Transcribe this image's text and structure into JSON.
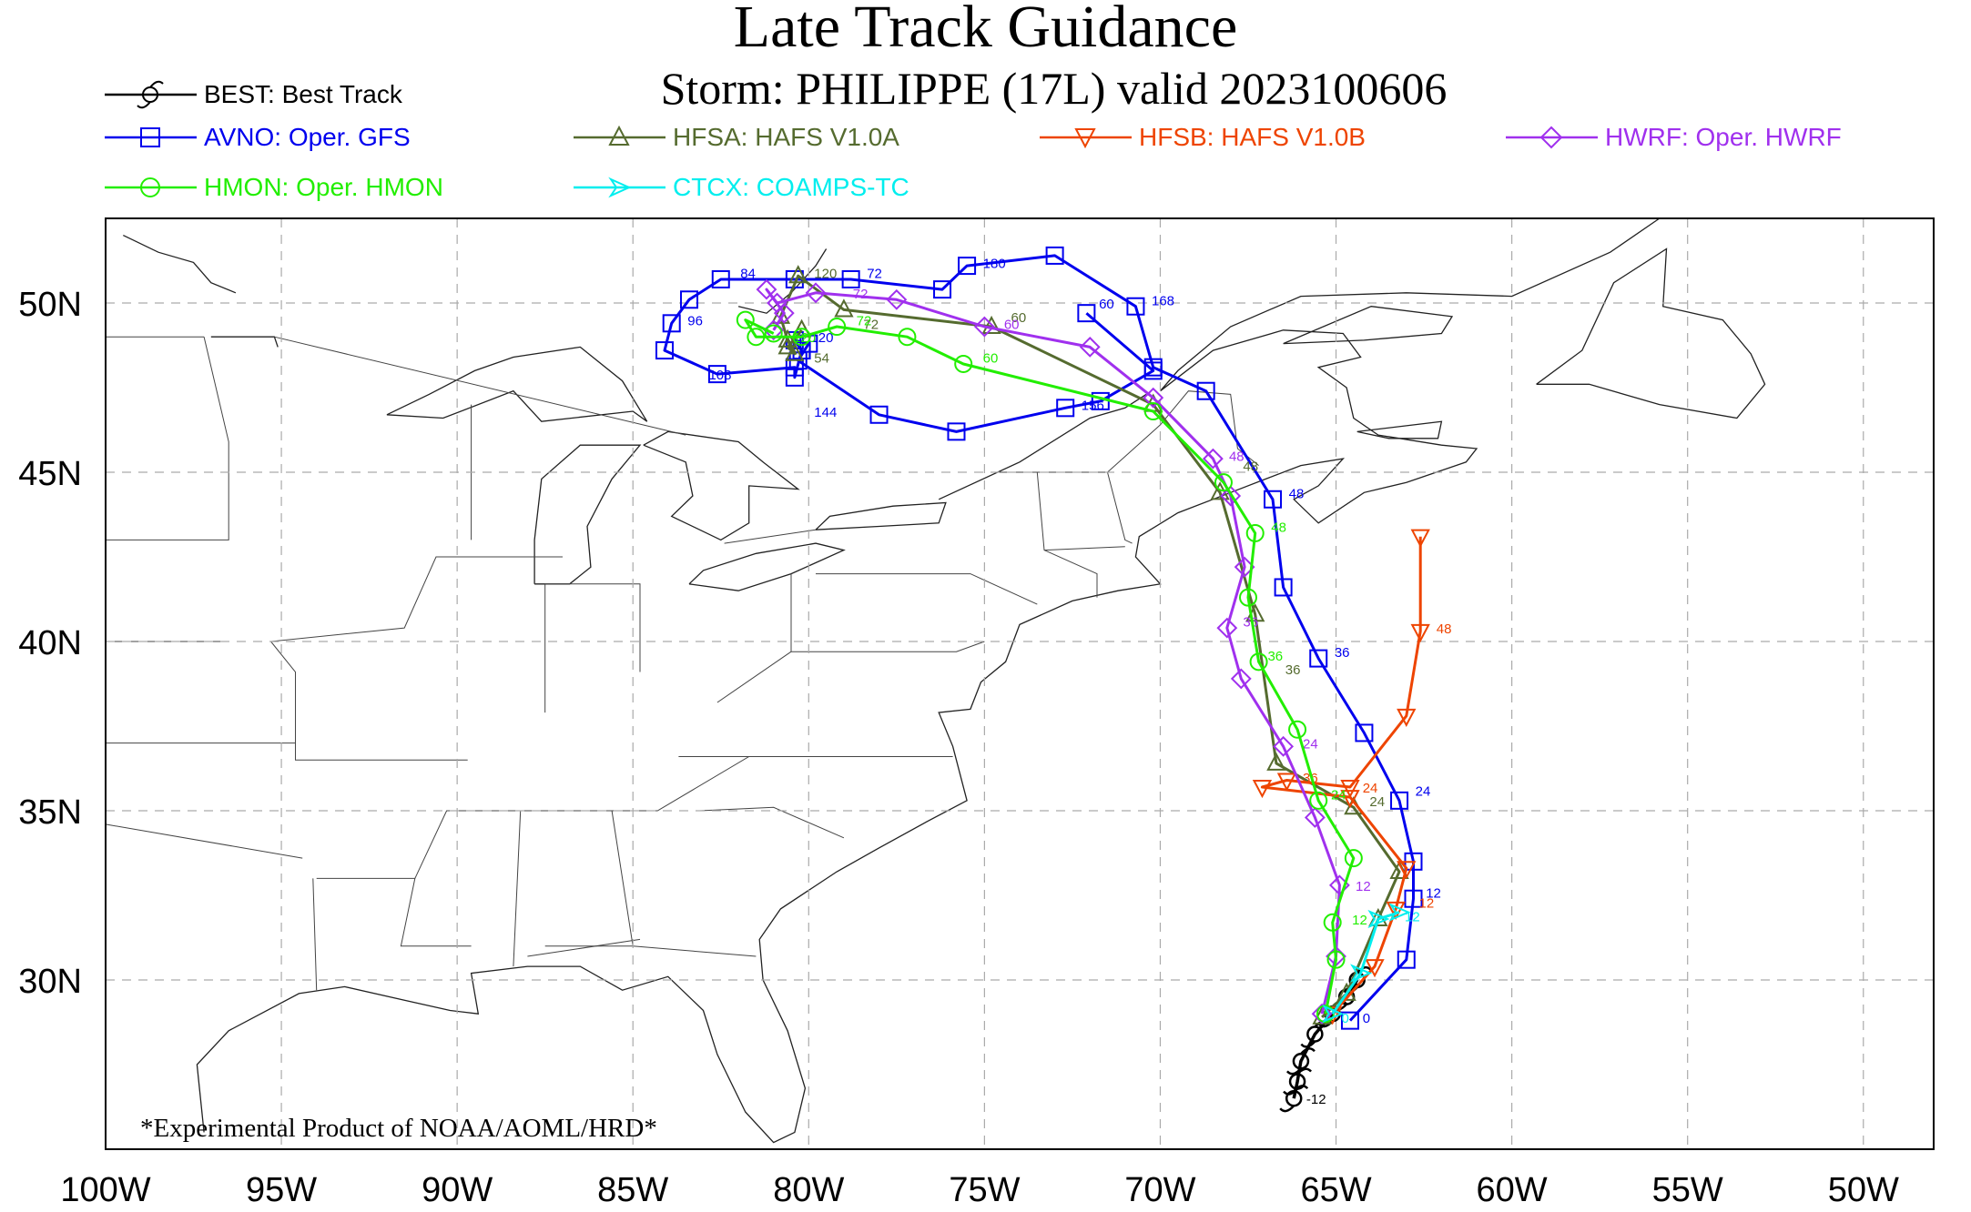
{
  "title": "Late Track Guidance",
  "subtitle": "Storm: PHILIPPE (17L) valid 2023100606",
  "footnote": "*Experimental Product of NOAA/AOML/HRD*",
  "axes": {
    "lon_labels": [
      "100W",
      "95W",
      "90W",
      "85W",
      "80W",
      "75W",
      "70W",
      "65W",
      "60W",
      "55W",
      "50W"
    ],
    "lat_labels": [
      "30N",
      "35N",
      "40N",
      "45N",
      "50N"
    ],
    "lon_range": [
      -100,
      -48
    ],
    "lat_range": [
      25,
      52.5
    ],
    "grid": true
  },
  "legend": [
    {
      "key": "BEST",
      "label": "BEST: Best Track",
      "color": "#000000",
      "marker": "hurricane"
    },
    {
      "key": "AVNO",
      "label": "AVNO: Oper. GFS",
      "color": "#0000ee",
      "marker": "square"
    },
    {
      "key": "HFSA",
      "label": "HFSA: HAFS V1.0A",
      "color": "#556b2f",
      "marker": "triangle-up"
    },
    {
      "key": "HFSB",
      "label": "HFSB: HAFS V1.0B",
      "color": "#ee4400",
      "marker": "triangle-down"
    },
    {
      "key": "HWRF",
      "label": "HWRF: Oper. HWRF",
      "color": "#a030ee",
      "marker": "diamond"
    },
    {
      "key": "HMON",
      "label": "HMON: Oper. HMON",
      "color": "#22ee00",
      "marker": "circle"
    },
    {
      "key": "CTCX",
      "label": "CTCX: COAMPS-TC",
      "color": "#00eeee",
      "marker": "arrow"
    }
  ],
  "chart_data": {
    "type": "scatter",
    "series": [
      {
        "name": "BEST",
        "color": "#000000",
        "marker": "hurricane",
        "points": [
          [
            -66.2,
            26.5
          ],
          [
            -66.1,
            27.0
          ],
          [
            -66.0,
            27.6
          ],
          [
            -65.6,
            28.4
          ],
          [
            -65.1,
            29.0
          ],
          [
            -64.7,
            29.5
          ],
          [
            -64.4,
            30.0
          ]
        ],
        "labels": [
          {
            "text": "-12",
            "lon": -66.0,
            "lat": 26.5
          }
        ]
      },
      {
        "name": "AVNO",
        "color": "#0000ee",
        "marker": "square",
        "points": [
          [
            -64.6,
            28.8
          ],
          [
            -63.0,
            30.6
          ],
          [
            -62.8,
            32.4
          ],
          [
            -62.8,
            33.5
          ],
          [
            -63.2,
            35.3
          ],
          [
            -64.2,
            37.3
          ],
          [
            -65.5,
            39.5
          ],
          [
            -66.5,
            41.6
          ],
          [
            -66.8,
            44.2
          ],
          [
            -68.7,
            47.4
          ],
          [
            -70.2,
            48.1
          ],
          [
            -70.7,
            49.9
          ],
          [
            -73.0,
            51.4
          ],
          [
            -75.5,
            51.1
          ],
          [
            -76.2,
            50.4
          ],
          [
            -78.8,
            50.7
          ],
          [
            -80.4,
            50.7
          ],
          [
            -82.5,
            50.7
          ],
          [
            -83.4,
            50.1
          ],
          [
            -83.9,
            49.4
          ],
          [
            -84.1,
            48.6
          ],
          [
            -82.6,
            47.9
          ],
          [
            -80.4,
            48.1
          ],
          [
            -80.4,
            47.8
          ],
          [
            -80.2,
            48.6
          ],
          [
            -80.4,
            48.9
          ],
          [
            -80.0,
            48.8
          ],
          [
            -80.3,
            48.3
          ],
          [
            -78.0,
            46.7
          ],
          [
            -75.8,
            46.2
          ],
          [
            -72.7,
            46.9
          ],
          [
            -71.7,
            47.1
          ],
          [
            -70.2,
            48.0
          ],
          [
            -72.1,
            49.7
          ]
        ],
        "labels": [
          {
            "text": "0",
            "lon": -64.4,
            "lat": 28.9
          },
          {
            "text": "12",
            "lon": -62.6,
            "lat": 32.6
          },
          {
            "text": "24",
            "lon": -62.9,
            "lat": 35.6
          },
          {
            "text": "36",
            "lon": -65.2,
            "lat": 39.7
          },
          {
            "text": "48",
            "lon": -66.5,
            "lat": 44.4
          },
          {
            "text": "60",
            "lon": -71.9,
            "lat": 50.0
          },
          {
            "text": "72",
            "lon": -78.5,
            "lat": 50.9
          },
          {
            "text": "84",
            "lon": -82.1,
            "lat": 50.9
          },
          {
            "text": "96",
            "lon": -83.6,
            "lat": 49.5
          },
          {
            "text": "108",
            "lon": -83.0,
            "lat": 47.9
          },
          {
            "text": "120",
            "lon": -80.1,
            "lat": 49.0
          },
          {
            "text": "144",
            "lon": -80.0,
            "lat": 46.8
          },
          {
            "text": "156",
            "lon": -72.4,
            "lat": 47.0
          },
          {
            "text": "168",
            "lon": -70.4,
            "lat": 50.1
          },
          {
            "text": "180",
            "lon": -75.2,
            "lat": 51.2
          }
        ]
      },
      {
        "name": "HFSA",
        "color": "#556b2f",
        "marker": "triangle-up",
        "points": [
          [
            -65.4,
            28.9
          ],
          [
            -64.7,
            29.6
          ],
          [
            -63.8,
            31.8
          ],
          [
            -63.2,
            33.2
          ],
          [
            -64.5,
            35.1
          ],
          [
            -66.7,
            36.4
          ],
          [
            -67.3,
            40.8
          ],
          [
            -68.3,
            44.4
          ],
          [
            -70.2,
            47.0
          ],
          [
            -74.8,
            49.3
          ],
          [
            -79.0,
            49.8
          ],
          [
            -80.3,
            50.8
          ],
          [
            -80.8,
            49.6
          ],
          [
            -80.6,
            48.9
          ],
          [
            -80.4,
            48.5
          ],
          [
            -80.6,
            48.7
          ],
          [
            -80.2,
            49.2
          ]
        ],
        "labels": [
          {
            "text": "24",
            "lon": -64.2,
            "lat": 35.3
          },
          {
            "text": "36",
            "lon": -66.6,
            "lat": 39.2
          },
          {
            "text": "48",
            "lon": -67.8,
            "lat": 45.2
          },
          {
            "text": "60",
            "lon": -74.4,
            "lat": 49.6
          },
          {
            "text": "72",
            "lon": -78.6,
            "lat": 49.4
          },
          {
            "text": "120",
            "lon": -80.0,
            "lat": 50.9
          },
          {
            "text": "54",
            "lon": -80.0,
            "lat": 48.4
          }
        ]
      },
      {
        "name": "HFSB",
        "color": "#ee4400",
        "marker": "triangle-down",
        "points": [
          [
            -65.1,
            29.0
          ],
          [
            -63.9,
            30.4
          ],
          [
            -63.3,
            32.1
          ],
          [
            -63.0,
            33.3
          ],
          [
            -64.6,
            35.4
          ],
          [
            -67.1,
            35.7
          ],
          [
            -66.4,
            35.9
          ],
          [
            -64.6,
            35.7
          ],
          [
            -63.0,
            37.8
          ],
          [
            -62.6,
            40.3
          ],
          [
            -62.6,
            43.1
          ]
        ],
        "labels": [
          {
            "text": "24",
            "lon": -64.4,
            "lat": 35.7
          },
          {
            "text": "36",
            "lon": -66.1,
            "lat": 36.0
          },
          {
            "text": "48",
            "lon": -62.3,
            "lat": 40.4
          },
          {
            "text": "12",
            "lon": -62.8,
            "lat": 32.3
          }
        ]
      },
      {
        "name": "HWRF",
        "color": "#a030ee",
        "marker": "diamond",
        "points": [
          [
            -65.4,
            29.0
          ],
          [
            -65.0,
            30.7
          ],
          [
            -64.9,
            32.8
          ],
          [
            -65.6,
            34.8
          ],
          [
            -66.5,
            36.9
          ],
          [
            -67.7,
            38.9
          ],
          [
            -68.1,
            40.4
          ],
          [
            -67.6,
            42.2
          ],
          [
            -68.0,
            44.3
          ],
          [
            -68.5,
            45.4
          ],
          [
            -70.2,
            47.2
          ],
          [
            -72.0,
            48.7
          ],
          [
            -75.0,
            49.3
          ],
          [
            -77.5,
            50.1
          ],
          [
            -79.8,
            50.3
          ],
          [
            -80.9,
            50.0
          ],
          [
            -81.2,
            50.4
          ],
          [
            -80.7,
            49.7
          ],
          [
            -81.0,
            49.2
          ]
        ],
        "labels": [
          {
            "text": "12",
            "lon": -64.6,
            "lat": 32.8
          },
          {
            "text": "24",
            "lon": -66.1,
            "lat": 37.0
          },
          {
            "text": "36",
            "lon": -67.8,
            "lat": 40.6
          },
          {
            "text": "48",
            "lon": -68.2,
            "lat": 45.5
          },
          {
            "text": "60",
            "lon": -74.6,
            "lat": 49.4
          },
          {
            "text": "72",
            "lon": -78.9,
            "lat": 50.3
          }
        ]
      },
      {
        "name": "HMON",
        "color": "#22ee00",
        "marker": "circle",
        "points": [
          [
            -65.3,
            29.0
          ],
          [
            -65.0,
            30.6
          ],
          [
            -65.1,
            31.7
          ],
          [
            -64.5,
            33.6
          ],
          [
            -65.5,
            35.3
          ],
          [
            -66.1,
            37.4
          ],
          [
            -67.2,
            39.4
          ],
          [
            -67.5,
            41.3
          ],
          [
            -67.3,
            43.2
          ],
          [
            -68.2,
            44.7
          ],
          [
            -70.2,
            46.8
          ],
          [
            -75.6,
            48.2
          ],
          [
            -77.2,
            49.0
          ],
          [
            -79.2,
            49.3
          ],
          [
            -80.2,
            49.0
          ],
          [
            -81.5,
            49.0
          ],
          [
            -81.8,
            49.5
          ],
          [
            -81.0,
            49.1
          ]
        ],
        "labels": [
          {
            "text": "12",
            "lon": -64.7,
            "lat": 31.8
          },
          {
            "text": "24",
            "lon": -65.3,
            "lat": 35.5
          },
          {
            "text": "36",
            "lon": -67.1,
            "lat": 39.6
          },
          {
            "text": "48",
            "lon": -67.0,
            "lat": 43.4
          },
          {
            "text": "60",
            "lon": -75.2,
            "lat": 48.4
          },
          {
            "text": "72",
            "lon": -78.8,
            "lat": 49.5
          },
          {
            "text": "120",
            "lon": -80.6,
            "lat": 49.0
          }
        ]
      },
      {
        "name": "CTCX",
        "color": "#00eeee",
        "marker": "arrow",
        "points": [
          [
            -65.1,
            29.0
          ],
          [
            -64.3,
            30.2
          ],
          [
            -63.8,
            31.8
          ],
          [
            -63.2,
            32.0
          ]
        ],
        "labels": [
          {
            "text": "12",
            "lon": -63.2,
            "lat": 31.9
          },
          {
            "text": "0",
            "lon": -65.0,
            "lat": 28.9
          }
        ]
      }
    ]
  }
}
